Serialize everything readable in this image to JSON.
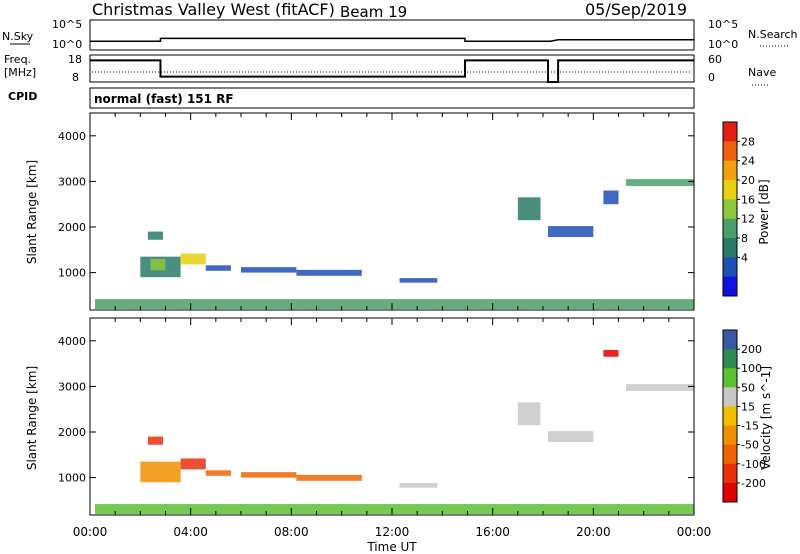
{
  "header": {
    "station": "Christmas Valley West (fitACF)",
    "beam": "Beam 19",
    "date": "05/Sep/2019"
  },
  "panel_labels": {
    "nsky": "N.Sky",
    "nsearch": "N.Search",
    "freq_line1": "Freq.",
    "freq_line2": "[MHz]",
    "nave": "Nave",
    "cpid": "CPID",
    "mode": "normal (fast) 151 RF"
  },
  "colors": {
    "power": [
      "#1010e0",
      "#1e50b4",
      "#2a7a6a",
      "#4aa06a",
      "#8dc83a",
      "#e8d010",
      "#f0a010",
      "#ec6010",
      "#e02010"
    ],
    "velocity": [
      "#1a30c0",
      "#3a58a8",
      "#2e8a50",
      "#5cc030",
      "#c8c8c8",
      "#f0c000",
      "#f09000",
      "#ee6400",
      "#e83010",
      "#e00000"
    ]
  },
  "chart_data": [
    {
      "type": "line",
      "title": "",
      "ylabel": "N.Sky",
      "yticks": [
        "10^5",
        "10^0"
      ],
      "right_label": "N.Search",
      "right_yticks": [
        "10^5",
        "10^0"
      ],
      "series": [
        {
          "x": [
            0,
            2.8,
            2.8,
            14.9,
            14.9,
            18.3,
            18.6,
            24
          ],
          "y": [
            1,
            1,
            1.6,
            1.6,
            1,
            1,
            1.3,
            1.3
          ]
        }
      ]
    },
    {
      "type": "line",
      "ylabel": "Freq. [MHz]",
      "ylim": [
        8,
        18
      ],
      "yticks": [
        "18",
        "8"
      ],
      "right_label": "Nave",
      "right_ylim": [
        0,
        60
      ],
      "right_yticks": [
        "60",
        "0"
      ],
      "series": [
        {
          "x": [
            0,
            2.8,
            2.8,
            14.9,
            14.9,
            18.2,
            18.2,
            18.6,
            18.6,
            24
          ],
          "y": [
            16,
            16,
            10,
            10,
            16,
            16,
            8,
            8,
            16,
            16
          ]
        }
      ]
    },
    {
      "type": "heatmap",
      "ylabel": "Slant Range [km]",
      "ylim": [
        180,
        4500
      ],
      "yticks": [
        1000,
        2000,
        3000,
        4000
      ],
      "colorbar": {
        "label": "Power [dB]",
        "ticks": [
          "4",
          "8",
          "12",
          "16",
          "20",
          "24",
          "28"
        ]
      },
      "regions": [
        {
          "t0": 0.2,
          "t1": 24,
          "r0": 200,
          "r1": 420,
          "c": 3
        },
        {
          "t0": 2.0,
          "t1": 3.6,
          "r0": 900,
          "r1": 1350,
          "c": 2
        },
        {
          "t0": 2.4,
          "t1": 3.0,
          "r0": 1050,
          "r1": 1300,
          "c": 4
        },
        {
          "t0": 3.6,
          "t1": 4.6,
          "r0": 1180,
          "r1": 1420,
          "c": 5
        },
        {
          "t0": 4.6,
          "t1": 5.6,
          "r0": 1040,
          "r1": 1160,
          "c": 1
        },
        {
          "t0": 6.0,
          "t1": 8.2,
          "r0": 1000,
          "r1": 1120,
          "c": 1
        },
        {
          "t0": 8.2,
          "t1": 10.8,
          "r0": 930,
          "r1": 1060,
          "c": 1
        },
        {
          "t0": 12.3,
          "t1": 13.8,
          "r0": 780,
          "r1": 880,
          "c": 1
        },
        {
          "t0": 2.3,
          "t1": 2.9,
          "r0": 1720,
          "r1": 1900,
          "c": 2
        },
        {
          "t0": 17.0,
          "t1": 17.9,
          "r0": 2150,
          "r1": 2650,
          "c": 2
        },
        {
          "t0": 18.2,
          "t1": 20.0,
          "r0": 1780,
          "r1": 2020,
          "c": 1
        },
        {
          "t0": 21.3,
          "t1": 24,
          "r0": 2900,
          "r1": 3050,
          "c": 3
        },
        {
          "t0": 20.4,
          "t1": 21.0,
          "r0": 2500,
          "r1": 2800,
          "c": 1
        }
      ]
    },
    {
      "type": "heatmap",
      "xlabel": "Time UT",
      "ylabel": "Slant Range [km]",
      "xlim": [
        0,
        24
      ],
      "xticks": [
        "00:00",
        "04:00",
        "08:00",
        "12:00",
        "16:00",
        "20:00",
        "00:00"
      ],
      "ylim": [
        180,
        4500
      ],
      "yticks": [
        1000,
        2000,
        3000,
        4000
      ],
      "colorbar": {
        "label": "Velocity [m s^-1]",
        "ticks": [
          "200",
          "100",
          "50",
          "15",
          "-15",
          "-50",
          "-100",
          "-200"
        ]
      },
      "regions": [
        {
          "t0": 0.2,
          "t1": 24,
          "r0": 200,
          "r1": 420,
          "c": 3
        },
        {
          "t0": 2.0,
          "t1": 3.6,
          "r0": 900,
          "r1": 1350,
          "c": 6
        },
        {
          "t0": 3.6,
          "t1": 4.6,
          "r0": 1180,
          "r1": 1420,
          "c": 8
        },
        {
          "t0": 4.6,
          "t1": 5.6,
          "r0": 1040,
          "r1": 1160,
          "c": 7
        },
        {
          "t0": 6.0,
          "t1": 8.2,
          "r0": 1000,
          "r1": 1120,
          "c": 7
        },
        {
          "t0": 8.2,
          "t1": 10.8,
          "r0": 930,
          "r1": 1060,
          "c": 7
        },
        {
          "t0": 12.3,
          "t1": 13.8,
          "r0": 780,
          "r1": 880,
          "c": 4
        },
        {
          "t0": 2.3,
          "t1": 2.9,
          "r0": 1720,
          "r1": 1900,
          "c": 8
        },
        {
          "t0": 17.0,
          "t1": 17.9,
          "r0": 2150,
          "r1": 2650,
          "c": 4
        },
        {
          "t0": 18.2,
          "t1": 20.0,
          "r0": 1780,
          "r1": 2020,
          "c": 4
        },
        {
          "t0": 21.3,
          "t1": 24,
          "r0": 2900,
          "r1": 3050,
          "c": 4
        },
        {
          "t0": 20.4,
          "t1": 21.0,
          "r0": 3650,
          "r1": 3800,
          "c": 9
        }
      ]
    }
  ]
}
